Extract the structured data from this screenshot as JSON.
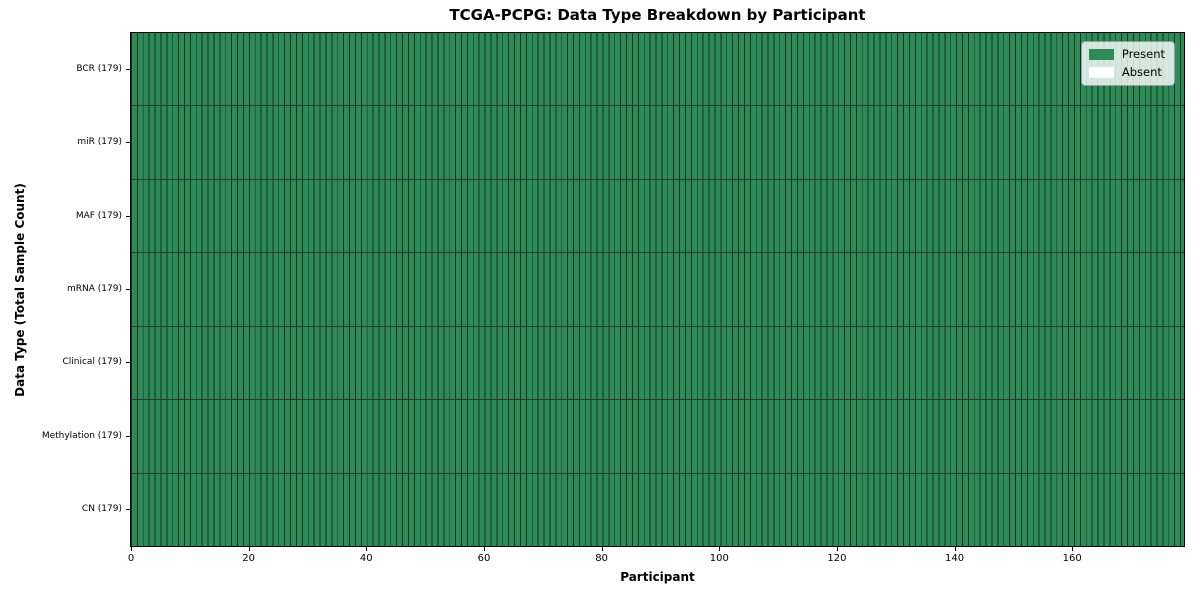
{
  "chart_data": {
    "type": "heatmap",
    "title": "TCGA-PCPG: Data Type Breakdown by Participant",
    "xlabel": "Participant",
    "ylabel": "Data Type (Total Sample Count)",
    "x_ticks": [
      0,
      20,
      40,
      60,
      80,
      100,
      120,
      140,
      160
    ],
    "xlim": [
      0,
      179
    ],
    "n_participants": 179,
    "rows": [
      {
        "label": "BCR (179)",
        "data_type": "BCR",
        "total_samples": 179,
        "present": 179,
        "absent": 0
      },
      {
        "label": "miR (179)",
        "data_type": "miR",
        "total_samples": 179,
        "present": 179,
        "absent": 0
      },
      {
        "label": "MAF (179)",
        "data_type": "MAF",
        "total_samples": 179,
        "present": 179,
        "absent": 0
      },
      {
        "label": "mRNA (179)",
        "data_type": "mRNA",
        "total_samples": 179,
        "present": 179,
        "absent": 0
      },
      {
        "label": "Clinical (179)",
        "data_type": "Clinical",
        "total_samples": 179,
        "present": 179,
        "absent": 0
      },
      {
        "label": "Methylation (179)",
        "data_type": "Methylation",
        "total_samples": 179,
        "present": 179,
        "absent": 0
      },
      {
        "label": "CN (179)",
        "data_type": "CN",
        "total_samples": 179,
        "present": 179,
        "absent": 0
      }
    ],
    "legend": [
      {
        "label": "Present",
        "color": "#2e8b57"
      },
      {
        "label": "Absent",
        "color": "#ffffff"
      }
    ],
    "legend_position": "upper right",
    "grid": false,
    "colors": {
      "present": "#2e8b57",
      "absent": "#ffffff",
      "cell_edge": "#081e12",
      "row_separator": "#000000",
      "plot_border": "#000000"
    }
  }
}
